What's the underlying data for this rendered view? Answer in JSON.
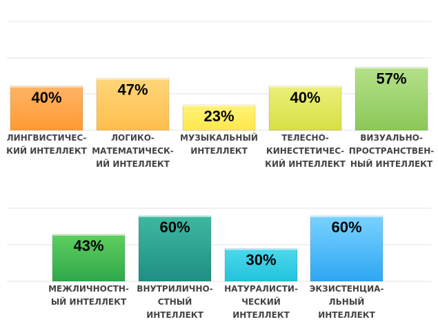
{
  "chart_data": [
    {
      "type": "bar",
      "categories": [
        [
          "ЛИНГВИСТИЧЕС-",
          "КИЙ ИНТЕЛЛЕКТ"
        ],
        [
          "ЛОГИКО-",
          "МАТЕМАТИЧЕСК-",
          "ИЙ ИНТЕЛЛЕКТ"
        ],
        [
          "МУЗЫКАЛЬНЫЙ",
          "ИНТЕЛЛЕКТ"
        ],
        [
          "ТЕЛЕСНО-",
          "КИНЕСТЕТИЧЕС-",
          "КИЙ ИНТЕЛЛЕКТ"
        ],
        [
          "ВИЗУАЛЬНО-",
          "ПРОСТРАНСТВЕН-",
          "НЫЙ ИНТЕЛЛЕКТ"
        ]
      ],
      "values": [
        40,
        47,
        23,
        40,
        57
      ],
      "labels": [
        "40%",
        "47%",
        "23%",
        "40%",
        "57%"
      ],
      "colors": [
        [
          "#ffb466",
          "#ff9a33"
        ],
        [
          "#ffd67a",
          "#ffbe4d"
        ],
        [
          "#fff27a",
          "#ffe84a"
        ],
        [
          "#eaf07a",
          "#d6e044"
        ],
        [
          "#b5e08a",
          "#8bc858"
        ]
      ],
      "ylim": [
        0,
        100
      ],
      "grid": true
    },
    {
      "type": "bar",
      "categories": [
        [
          "МЕЖЛИЧНОСТН-",
          "ЫЙ ИНТЕЛЛЕКТ"
        ],
        [
          "ВНУТРИЛИЧНО-",
          "СТНЫЙ",
          "ИНТЕЛЛЕКТ"
        ],
        [
          "НАТУРАЛИСТИ-",
          "ЧЕСКИЙ",
          "ИНТЕЛЛЕКТ"
        ],
        [
          "ЭКЗИСТЕНЦИА-",
          "ЛЬНЫЙ",
          "ИНТЕЛЛЕКТ"
        ]
      ],
      "values": [
        43,
        60,
        30,
        60
      ],
      "labels": [
        "43%",
        "60%",
        "30%",
        "60%"
      ],
      "colors": [
        [
          "#5fcf5f",
          "#2fa84a"
        ],
        [
          "#3fb8a0",
          "#1e8f84"
        ],
        [
          "#4dd8ec",
          "#22c3de"
        ],
        [
          "#7ad2ff",
          "#2ea7f2"
        ]
      ],
      "ylim": [
        0,
        100
      ],
      "grid": true
    }
  ]
}
